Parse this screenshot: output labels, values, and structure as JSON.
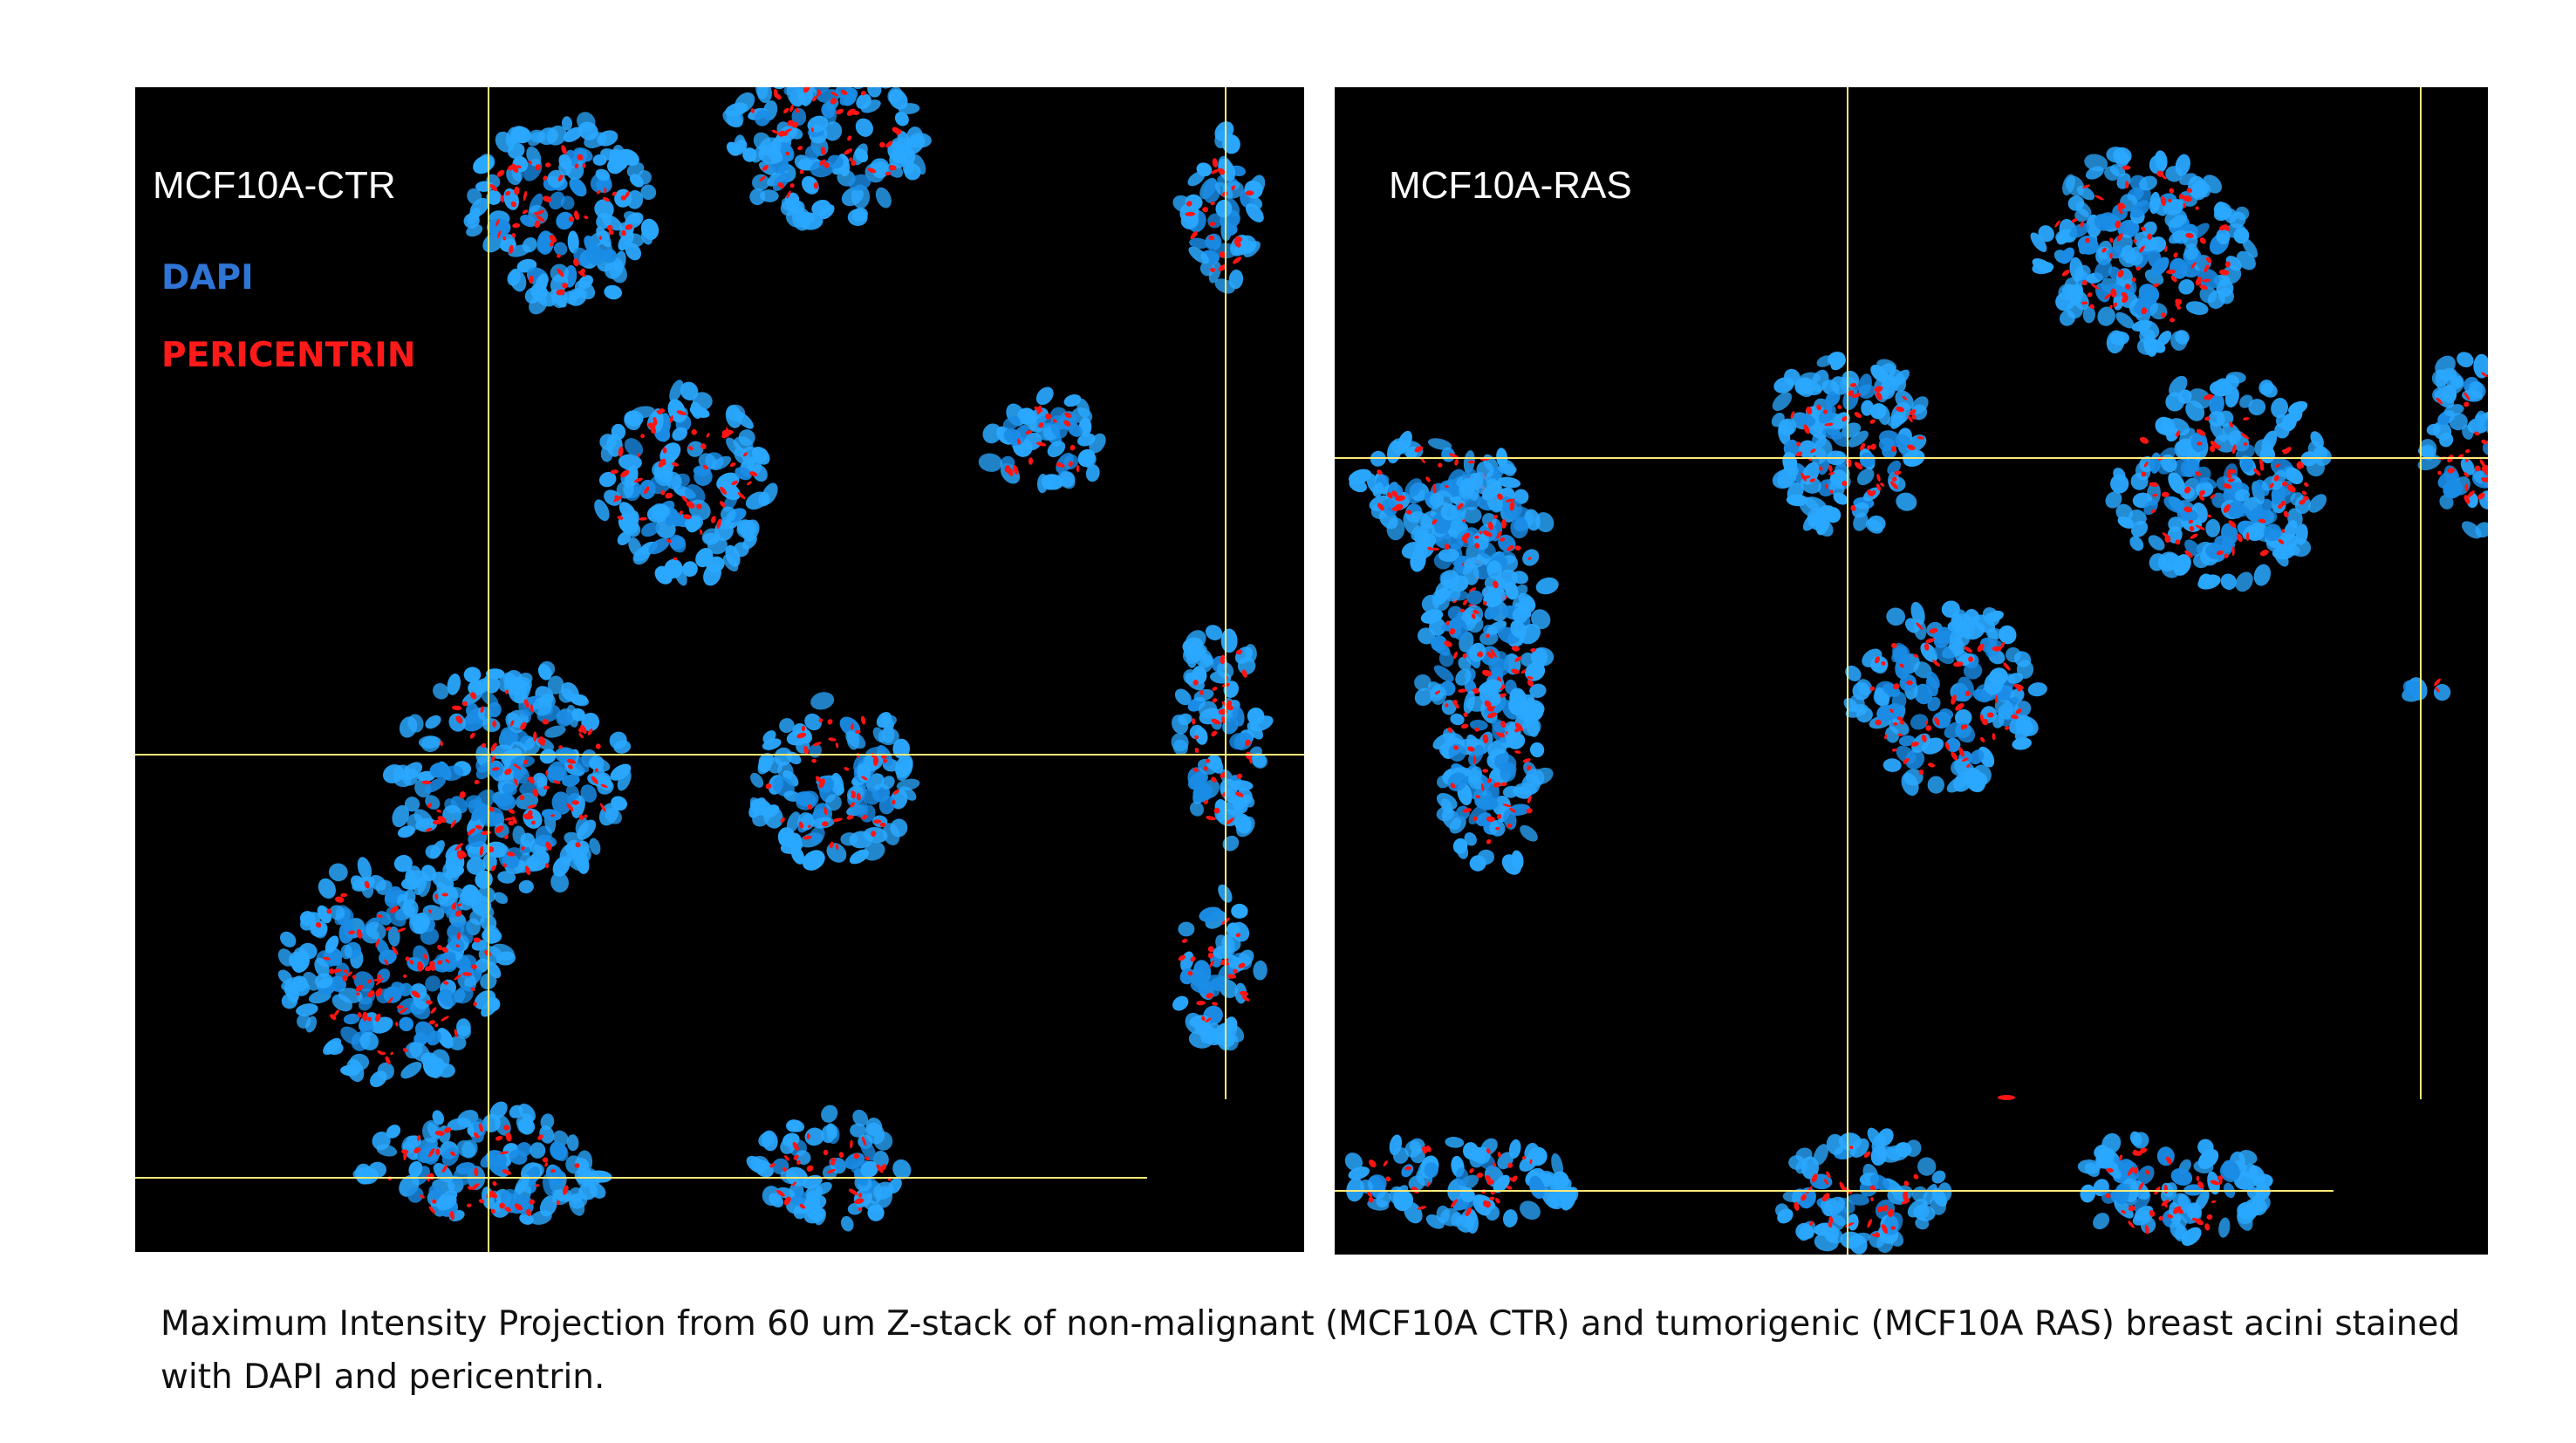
{
  "panels": [
    {
      "label": "MCF10A-CTR",
      "legend": [
        {
          "text": "DAPI",
          "color": "#2f75d6"
        },
        {
          "text": "PERICENTRIN",
          "color": "#ff1a1a"
        }
      ]
    },
    {
      "label": "MCF10A-RAS"
    }
  ],
  "colors": {
    "nucleus": "#1e9fff",
    "pericentrin": "#ff1414",
    "crosshair": "#ffe97a",
    "background": "#000000"
  },
  "caption": "Maximum Intensity Projection from 60 um Z-stack of non-malignant (MCF10A CTR) and tumorigenic (MCF10A RAS) breast acini stained with DAPI and pericentrin."
}
